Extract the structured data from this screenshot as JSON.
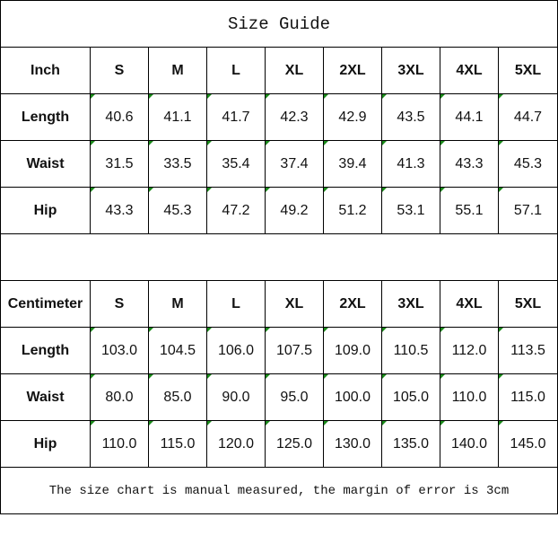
{
  "title": "Size Guide",
  "sizes": [
    "S",
    "M",
    "L",
    "XL",
    "2XL",
    "3XL",
    "4XL",
    "5XL"
  ],
  "colors": {
    "indicator": "#1a8a1a"
  },
  "inch": {
    "unit_label": "Inch",
    "rows": [
      {
        "label": "Length",
        "values": [
          "40.6",
          "41.1",
          "41.7",
          "42.3",
          "42.9",
          "43.5",
          "44.1",
          "44.7"
        ]
      },
      {
        "label": "Waist",
        "values": [
          "31.5",
          "33.5",
          "35.4",
          "37.4",
          "39.4",
          "41.3",
          "43.3",
          "45.3"
        ]
      },
      {
        "label": "Hip",
        "values": [
          "43.3",
          "45.3",
          "47.2",
          "49.2",
          "51.2",
          "53.1",
          "55.1",
          "57.1"
        ]
      }
    ]
  },
  "cm": {
    "unit_label": "Centimeter",
    "rows": [
      {
        "label": "Length",
        "values": [
          "103.0",
          "104.5",
          "106.0",
          "107.5",
          "109.0",
          "110.5",
          "112.0",
          "113.5"
        ]
      },
      {
        "label": "Waist",
        "values": [
          "80.0",
          "85.0",
          "90.0",
          "95.0",
          "100.0",
          "105.0",
          "110.0",
          "115.0"
        ]
      },
      {
        "label": "Hip",
        "values": [
          "110.0",
          "115.0",
          "120.0",
          "125.0",
          "130.0",
          "135.0",
          "140.0",
          "145.0"
        ]
      }
    ]
  },
  "note": "The size chart is manual measured, the margin of error is 3cm"
}
